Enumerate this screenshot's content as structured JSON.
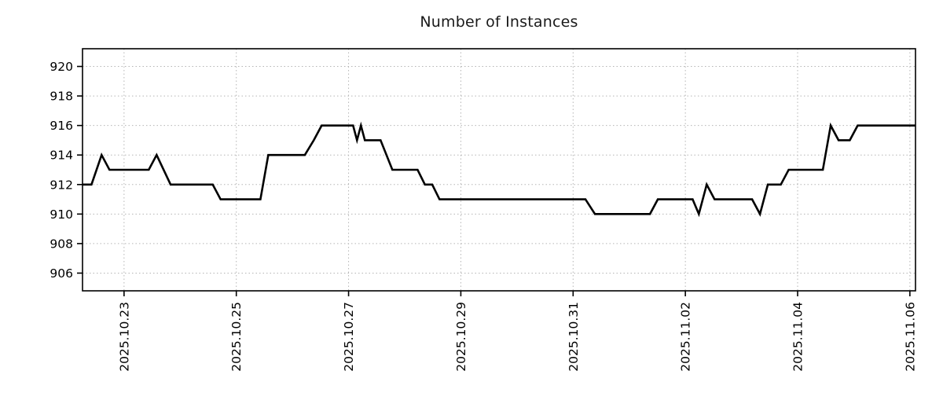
{
  "chart_data": {
    "type": "line",
    "title": "Number of Instances",
    "x_axis": {
      "unit": "days since 2025.10.22",
      "domain": [
        0.26,
        15.1
      ],
      "tick_positions": [
        1,
        3,
        5,
        7,
        9,
        11,
        13,
        15
      ],
      "tick_labels": [
        "2025.10.23",
        "2025.10.25",
        "2025.10.27",
        "2025.10.29",
        "2025.10.31",
        "2025.11.02",
        "2025.11.04",
        "2025.11.06"
      ]
    },
    "y_axis": {
      "domain": [
        904.8,
        921.2
      ],
      "tick_values": [
        906,
        908,
        910,
        912,
        914,
        916,
        918,
        920
      ]
    },
    "grid": {
      "style": "dotted",
      "color": "#b5b5b5"
    },
    "legend": "none",
    "series": [
      {
        "name": "instances",
        "color": "#000000",
        "points": [
          [
            0.26,
            912
          ],
          [
            0.42,
            912
          ],
          [
            0.6,
            914
          ],
          [
            0.74,
            913
          ],
          [
            1.44,
            913
          ],
          [
            1.58,
            914
          ],
          [
            1.83,
            912
          ],
          [
            2.58,
            912
          ],
          [
            2.72,
            911
          ],
          [
            3.43,
            911
          ],
          [
            3.57,
            914
          ],
          [
            4.22,
            914
          ],
          [
            4.38,
            915
          ],
          [
            4.52,
            916
          ],
          [
            5.08,
            916
          ],
          [
            5.15,
            915
          ],
          [
            5.22,
            916
          ],
          [
            5.29,
            915
          ],
          [
            5.57,
            915
          ],
          [
            5.78,
            913
          ],
          [
            6.23,
            913
          ],
          [
            6.36,
            912
          ],
          [
            6.49,
            912
          ],
          [
            6.62,
            911
          ],
          [
            9.22,
            911
          ],
          [
            9.39,
            910
          ],
          [
            10.37,
            910
          ],
          [
            10.51,
            911
          ],
          [
            11.13,
            911
          ],
          [
            11.24,
            910
          ],
          [
            11.38,
            912
          ],
          [
            11.52,
            911
          ],
          [
            12.19,
            911
          ],
          [
            12.33,
            910
          ],
          [
            12.47,
            912
          ],
          [
            12.7,
            912
          ],
          [
            12.84,
            913
          ],
          [
            13.45,
            913
          ],
          [
            13.59,
            916
          ],
          [
            13.73,
            915
          ],
          [
            13.93,
            915
          ],
          [
            14.07,
            916
          ],
          [
            15.1,
            916
          ]
        ]
      }
    ]
  }
}
